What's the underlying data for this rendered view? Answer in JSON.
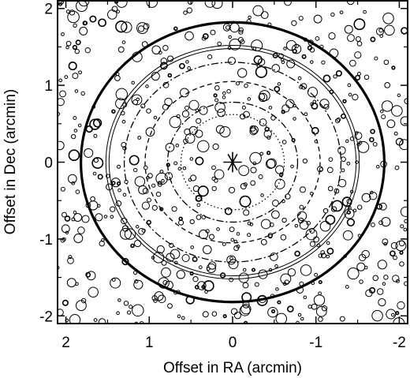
{
  "chart_data": {
    "type": "scatter",
    "title": "",
    "xlabel": "Offset in RA (arcmin)",
    "ylabel": "Offset in Dec (arcmin)",
    "xlim": [
      2.1,
      -2.1
    ],
    "ylim": [
      -2.1,
      2.1
    ],
    "x_direction": "decreasing to the right",
    "xticks": [
      2,
      1,
      0,
      -1,
      -2
    ],
    "yticks": [
      -2,
      -1,
      0,
      1,
      2
    ],
    "xtick_labels": [
      "2",
      "1",
      "0",
      "-1",
      "-2"
    ],
    "ytick_labels": [
      "-2",
      "-1",
      "0",
      "1",
      "2"
    ],
    "grid": false,
    "center_marker": {
      "shape": "asterisk",
      "x": 0,
      "y": 0,
      "size_arcmin": 0.12
    },
    "rings": [
      {
        "radius_arcmin": 1.82,
        "style": "solid-thick"
      },
      {
        "radius_arcmin": 1.52,
        "style": "solid-double-thin"
      },
      {
        "radius_arcmin": 1.3,
        "style": "dash-dot"
      },
      {
        "radius_arcmin": 1.05,
        "style": "dashed"
      },
      {
        "radius_arcmin": 0.78,
        "style": "dash-dot"
      },
      {
        "radius_arcmin": 0.62,
        "style": "dotted"
      }
    ],
    "stars": {
      "description": "open circles, randomly scattered background sources",
      "count": 640,
      "radius_range_arcmin": [
        0.018,
        0.075
      ],
      "seed": 7
    }
  }
}
